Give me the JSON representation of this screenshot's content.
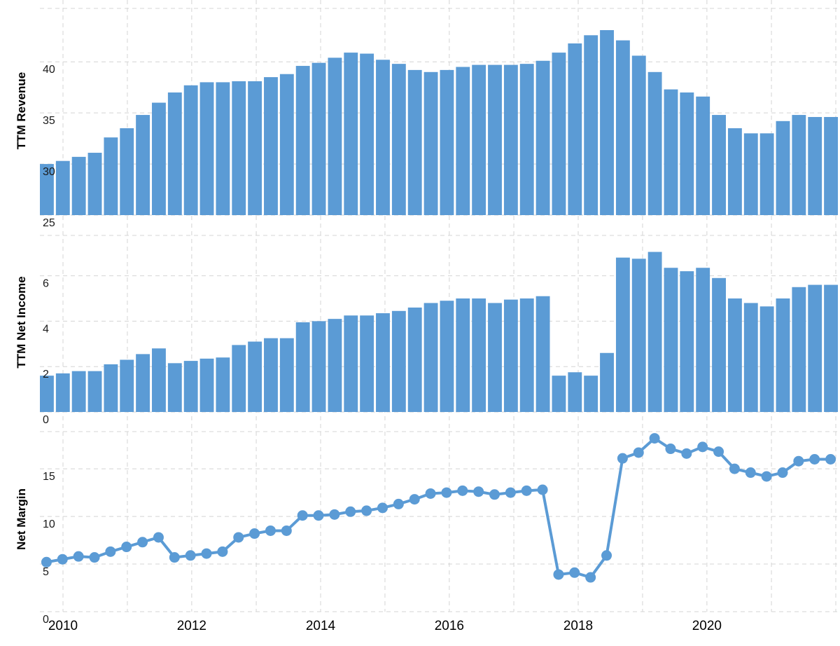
{
  "chart_data": {
    "type": "bar",
    "accent_color": "#5b9bd5",
    "grid": true,
    "x_tick_labels": [
      "2010",
      "2012",
      "2014",
      "2016",
      "2018",
      "2020"
    ],
    "x": [
      "2009-09-30",
      "2009-12-31",
      "2010-03-31",
      "2010-06-30",
      "2010-09-30",
      "2010-12-31",
      "2011-03-31",
      "2011-06-30",
      "2011-09-30",
      "2011-12-31",
      "2012-03-31",
      "2012-06-30",
      "2012-09-30",
      "2012-12-31",
      "2013-03-31",
      "2013-06-30",
      "2013-09-30",
      "2013-12-31",
      "2014-03-31",
      "2014-06-30",
      "2014-09-30",
      "2014-12-31",
      "2015-03-31",
      "2015-06-30",
      "2015-09-30",
      "2015-12-31",
      "2016-03-31",
      "2016-06-30",
      "2016-09-30",
      "2016-12-31",
      "2017-03-31",
      "2017-06-30",
      "2017-09-30",
      "2017-12-31",
      "2018-03-31",
      "2018-06-30",
      "2018-09-30",
      "2018-12-31",
      "2019-03-31",
      "2019-06-30",
      "2019-09-30",
      "2019-12-31",
      "2020-03-31",
      "2020-06-30",
      "2020-09-30",
      "2020-12-31",
      "2021-03-31",
      "2021-06-30",
      "2021-09-30",
      "2021-12-31"
    ],
    "panels": [
      {
        "type": "bar",
        "ylabel": "TTM Revenue",
        "ylim": [
          25,
          45.5
        ],
        "yticks": [
          25,
          30,
          35,
          40
        ],
        "values": [
          30.0,
          30.3,
          30.7,
          31.1,
          32.6,
          33.5,
          34.8,
          36.0,
          37.0,
          37.7,
          38.0,
          38.0,
          38.1,
          38.1,
          38.5,
          38.8,
          39.6,
          39.9,
          40.4,
          40.9,
          40.8,
          40.2,
          39.8,
          39.2,
          39.0,
          39.2,
          39.5,
          39.7,
          39.7,
          39.7,
          39.8,
          40.1,
          40.9,
          41.8,
          42.6,
          43.1,
          42.1,
          40.6,
          39.0,
          37.3,
          37.0,
          36.6,
          34.8,
          33.5,
          33.0,
          33.0,
          34.2,
          34.8,
          34.6,
          34.6
        ]
      },
      {
        "type": "bar",
        "ylabel": "TTM Net Income",
        "ylim": [
          0,
          7.9
        ],
        "yticks": [
          0,
          2,
          4,
          6
        ],
        "values": [
          1.6,
          1.7,
          1.8,
          1.8,
          2.1,
          2.3,
          2.55,
          2.8,
          2.15,
          2.25,
          2.35,
          2.4,
          2.95,
          3.1,
          3.25,
          3.25,
          3.95,
          4.0,
          4.1,
          4.25,
          4.25,
          4.35,
          4.45,
          4.6,
          4.8,
          4.9,
          5.0,
          5.0,
          4.8,
          4.95,
          5.0,
          5.1,
          1.6,
          1.75,
          1.6,
          2.6,
          6.8,
          6.75,
          7.05,
          6.35,
          6.2,
          6.35,
          5.9,
          5.0,
          4.8,
          4.65,
          5.0,
          5.5,
          5.6,
          5.6
        ]
      },
      {
        "type": "line",
        "ylabel": "Net Margin",
        "ylim": [
          0,
          19.2
        ],
        "yticks": [
          0,
          5,
          10,
          15
        ],
        "values": [
          5.2,
          5.5,
          5.8,
          5.7,
          6.3,
          6.8,
          7.3,
          7.8,
          5.7,
          5.9,
          6.1,
          6.3,
          7.8,
          8.2,
          8.5,
          8.5,
          10.1,
          10.1,
          10.2,
          10.5,
          10.6,
          10.9,
          11.3,
          11.8,
          12.4,
          12.5,
          12.7,
          12.6,
          12.3,
          12.5,
          12.7,
          12.8,
          3.9,
          4.1,
          3.6,
          5.9,
          16.1,
          16.7,
          18.2,
          17.1,
          16.6,
          17.3,
          16.8,
          15.0,
          14.6,
          14.2,
          14.6,
          15.8,
          16.0,
          16.0
        ]
      }
    ]
  }
}
